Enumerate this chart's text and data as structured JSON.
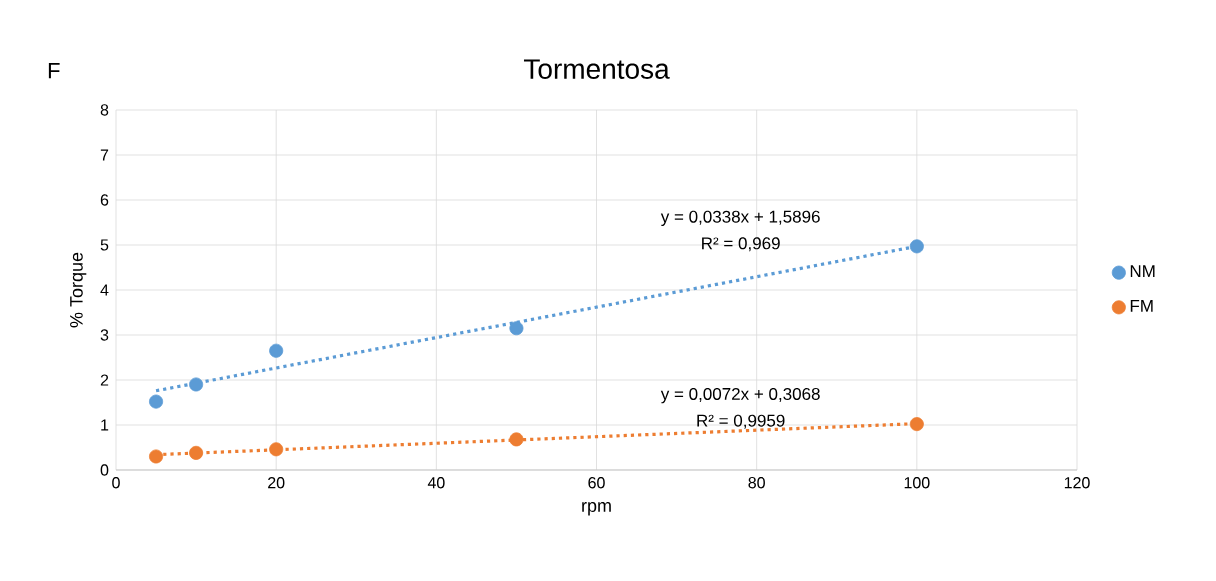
{
  "chart_data": {
    "type": "scatter",
    "title": "Tormentosa",
    "xlabel": "rpm",
    "ylabel": "% Torque",
    "xlim": [
      0,
      120
    ],
    "xticks": [
      0,
      20,
      40,
      60,
      80,
      100,
      120
    ],
    "ylim": [
      0,
      8
    ],
    "yticks": [
      0,
      1,
      2,
      3,
      4,
      5,
      6,
      7,
      8
    ],
    "grid": true,
    "legend": "right",
    "series": [
      {
        "name": "NM",
        "marker": "circle",
        "color": "#5b9bd5",
        "x": [
          5,
          10,
          20,
          50,
          100
        ],
        "values": [
          1.52,
          1.9,
          2.65,
          3.15,
          4.97
        ]
      },
      {
        "name": "FM",
        "marker": "circle",
        "color": "#ed7d31",
        "x": [
          5,
          10,
          20,
          50,
          100
        ],
        "values": [
          0.3,
          0.38,
          0.46,
          0.68,
          1.02
        ]
      },
      {
        "type": "line",
        "line_style": "dotted",
        "marker": "none",
        "color": "#5b9bd5",
        "x": [
          5,
          100
        ],
        "values": [
          1.76,
          4.97
        ]
      },
      {
        "type": "line",
        "line_style": "dotted",
        "marker": "none",
        "color": "#ed7d31",
        "x": [
          5,
          100
        ],
        "values": [
          0.34,
          1.03
        ]
      }
    ],
    "annotations": [
      "F",
      "y = 0,0338x + 1,5896",
      "R² = 0,969",
      "y = 0,0072x + 0,3068",
      "R² = 0,9959"
    ]
  }
}
